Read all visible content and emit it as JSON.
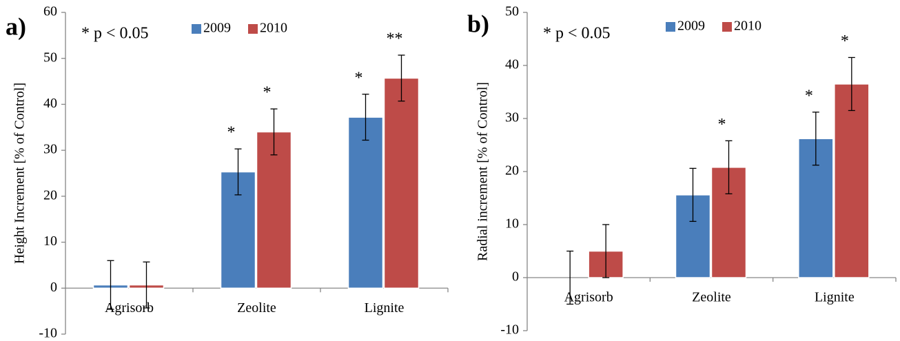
{
  "chart_data": [
    {
      "type": "bar",
      "panel_label": "a)",
      "annotation": "* p < 0.05",
      "y_label": "Height Increment [% of Control]",
      "categories": [
        "Agrisorb",
        "Zeolite",
        "Lignite"
      ],
      "series": [
        {
          "name": "2009",
          "color": "#4a7ebb",
          "values": [
            0.7,
            25.3,
            37.2
          ],
          "errors": [
            5.3,
            5,
            5
          ],
          "markers": [
            null,
            "*",
            "*"
          ]
        },
        {
          "name": "2010",
          "color": "#be4b48",
          "values": [
            0.7,
            34,
            45.7
          ],
          "errors": [
            5,
            5,
            5
          ],
          "markers": [
            null,
            "*",
            "**"
          ]
        }
      ],
      "ylim": [
        -10,
        60
      ],
      "yticks": [
        -10,
        0,
        10,
        20,
        30,
        40,
        50,
        60
      ]
    },
    {
      "type": "bar",
      "panel_label": "b)",
      "annotation": "* p < 0.05",
      "y_label": "Radial  increment [% of Control]",
      "categories": [
        "Agrisorb",
        "Zeolite",
        "Lignite"
      ],
      "series": [
        {
          "name": "2009",
          "color": "#4a7ebb",
          "values": [
            0,
            15.6,
            26.2
          ],
          "errors": [
            5,
            5,
            5
          ],
          "markers": [
            null,
            null,
            "*"
          ]
        },
        {
          "name": "2010",
          "color": "#be4b48",
          "values": [
            5,
            20.8,
            36.5
          ],
          "errors": [
            5,
            5,
            5
          ],
          "markers": [
            null,
            "*",
            "*"
          ]
        }
      ],
      "ylim": [
        -10,
        50
      ],
      "yticks": [
        -10,
        0,
        10,
        20,
        30,
        40,
        50
      ]
    }
  ]
}
